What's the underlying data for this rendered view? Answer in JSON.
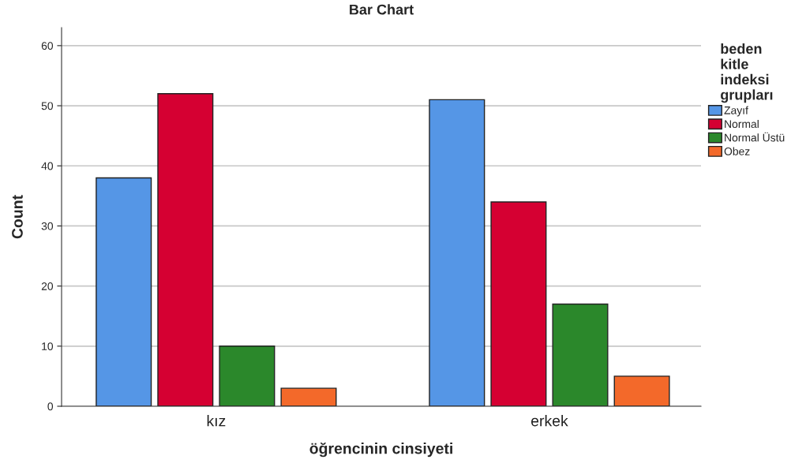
{
  "chart_data": {
    "type": "bar",
    "title": "Bar Chart",
    "xlabel": "öğrencinin cinsiyeti",
    "ylabel": "Count",
    "legend_title": "beden\nkitle\nindeksi\ngrupları",
    "categories": [
      "kız",
      "erkek"
    ],
    "series": [
      {
        "name": "Zayıf",
        "color": "#5596e6",
        "values": [
          38,
          51
        ]
      },
      {
        "name": "Normal",
        "color": "#d50032",
        "values": [
          52,
          34
        ]
      },
      {
        "name": "Normal Üstü",
        "color": "#2b882b",
        "values": [
          10,
          17
        ]
      },
      {
        "name": "Obez",
        "color": "#f3692a",
        "values": [
          3,
          5
        ]
      }
    ],
    "ylim": [
      0,
      63
    ],
    "yticks": [
      0,
      10,
      20,
      30,
      40,
      50,
      60
    ],
    "grid": "y",
    "legend": "right"
  }
}
